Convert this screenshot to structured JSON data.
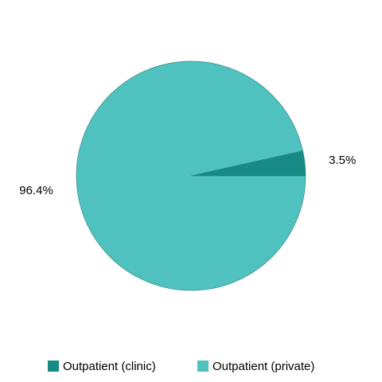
{
  "chart_data": {
    "type": "pie",
    "categories": [
      "Outpatient (clinic)",
      "Outpatient (private)"
    ],
    "values": [
      3.5,
      96.4
    ],
    "value_labels": [
      "3.5%",
      "96.4%"
    ],
    "colors": [
      "#178a86",
      "#4fc1be"
    ],
    "legend": "bottom"
  }
}
